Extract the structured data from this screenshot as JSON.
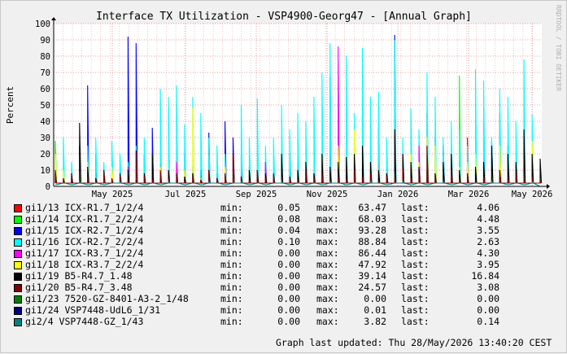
{
  "chart_data": {
    "type": "line",
    "title": "Interface TX Utilization - VSP4900-Georg47 - [Annual Graph]",
    "ylabel": "Percent",
    "xlabel": "",
    "ylim": [
      0,
      100
    ],
    "yticks": [
      0,
      10,
      20,
      30,
      40,
      50,
      60,
      70,
      80,
      90,
      100
    ],
    "x_tick_labels": [
      "May 2025",
      "Jul 2025",
      "Sep 2025",
      "Nov 2025",
      "Jan 2026",
      "Mar 2026",
      "May 2026"
    ],
    "grid": true,
    "watermark": "RRDTOOL / TOBI OETIKER",
    "series": [
      {
        "name": "gi1/13 ICX-R1.7_1/2/4",
        "color": "#ff0000",
        "min": "0.05",
        "max": "63.47",
        "last": "4.06",
        "values": [
          3,
          5,
          2,
          8,
          4,
          3,
          6,
          2,
          12,
          5,
          3,
          7,
          4,
          2,
          9,
          5,
          3,
          4,
          6,
          8,
          3,
          5,
          2,
          7,
          4,
          10,
          3,
          6,
          2,
          5,
          4,
          3,
          8,
          5,
          2,
          6,
          4,
          14,
          5,
          3,
          36,
          4,
          6,
          3,
          5,
          2,
          9,
          4,
          7,
          3,
          5,
          30,
          4,
          2,
          8,
          45,
          6,
          3,
          5,
          2,
          4
        ]
      },
      {
        "name": "gi1/14 ICX-R1.7_2/2/4",
        "color": "#00ff00",
        "min": "0.08",
        "max": "68.03",
        "last": "4.48",
        "values": [
          28,
          12,
          3,
          5,
          2,
          4,
          6,
          3,
          2,
          8,
          4,
          3,
          5,
          2,
          7,
          3,
          4,
          6,
          2,
          5,
          3,
          4,
          2,
          6,
          3,
          5,
          8,
          2,
          4,
          3,
          6,
          5,
          2,
          4,
          3,
          7,
          5,
          2,
          4,
          6,
          3,
          5,
          2,
          4,
          3,
          8,
          2,
          5,
          4,
          3,
          68,
          5,
          2,
          4,
          6,
          3,
          5,
          2,
          4,
          3,
          4
        ]
      },
      {
        "name": "gi1/15 ICX-R2.7_1/2/4",
        "color": "#0000ff",
        "min": "0.04",
        "max": "93.28",
        "last": "3.55",
        "values": [
          5,
          3,
          8,
          25,
          62,
          20,
          12,
          8,
          5,
          92,
          88,
          20,
          36,
          15,
          10,
          8,
          20,
          12,
          10,
          33,
          8,
          40,
          30,
          20,
          12,
          10,
          15,
          8,
          12,
          20,
          15,
          10,
          8,
          5,
          67,
          25,
          15,
          8,
          12,
          10,
          5,
          8,
          93,
          20,
          12,
          15,
          45,
          30,
          25,
          20,
          15,
          10,
          8,
          42,
          28,
          20,
          25,
          15,
          10,
          8,
          4
        ]
      },
      {
        "name": "gi1/16 ICX-R2.7_2/2/4",
        "color": "#00ffff",
        "min": "0.10",
        "max": "88.84",
        "last": "2.63",
        "values": [
          10,
          30,
          15,
          20,
          25,
          30,
          15,
          28,
          20,
          15,
          25,
          30,
          20,
          60,
          55,
          62,
          38,
          55,
          45,
          30,
          25,
          20,
          18,
          50,
          30,
          54,
          25,
          30,
          50,
          35,
          45,
          40,
          55,
          70,
          88,
          60,
          80,
          45,
          85,
          55,
          58,
          30,
          90,
          30,
          48,
          35,
          70,
          55,
          30,
          40,
          35,
          25,
          72,
          65,
          30,
          60,
          55,
          40,
          78,
          44,
          3
        ]
      },
      {
        "name": "gi1/17 ICX-R3.7_1/2/4",
        "color": "#ff00ff",
        "min": "0.00",
        "max": "86.44",
        "last": "4.30",
        "values": [
          2,
          4,
          3,
          6,
          2,
          5,
          8,
          3,
          4,
          12,
          5,
          3,
          6,
          2,
          4,
          15,
          3,
          5,
          2,
          4,
          3,
          6,
          2,
          5,
          3,
          4,
          15,
          2,
          5,
          3,
          6,
          4,
          2,
          5,
          3,
          86,
          4,
          2,
          6,
          3,
          5,
          2,
          4,
          3,
          6,
          25,
          4,
          2,
          5,
          3,
          6,
          4,
          2,
          5,
          3,
          6,
          4,
          2,
          5,
          3,
          4
        ]
      },
      {
        "name": "gi1/18 ICX-R3.7_2/2/4",
        "color": "#ffff00",
        "min": "0.00",
        "max": "47.92",
        "last": "3.95",
        "values": [
          20,
          10,
          5,
          8,
          15,
          3,
          6,
          12,
          4,
          10,
          5,
          8,
          3,
          12,
          6,
          4,
          10,
          48,
          5,
          8,
          3,
          12,
          6,
          4,
          10,
          5,
          8,
          3,
          6,
          4,
          10,
          5,
          8,
          20,
          6,
          25,
          10,
          35,
          6,
          8,
          10,
          5,
          8,
          12,
          20,
          15,
          30,
          25,
          10,
          8,
          12,
          15,
          20,
          10,
          8,
          25,
          12,
          15,
          10,
          28,
          4
        ]
      },
      {
        "name": "gi1/19 B5-R4.7_1.48",
        "color": "#000000",
        "min": "0.00",
        "max": "39.14",
        "last": "16.84",
        "values": [
          8,
          3,
          5,
          39,
          12,
          5,
          8,
          3,
          6,
          10,
          4,
          8,
          20,
          5,
          10,
          3,
          6,
          8,
          4,
          10,
          5,
          8,
          20,
          6,
          10,
          5,
          8,
          3,
          20,
          6,
          10,
          15,
          8,
          20,
          12,
          15,
          18,
          20,
          25,
          15,
          10,
          8,
          35,
          20,
          15,
          12,
          10,
          8,
          15,
          20,
          10,
          8,
          12,
          15,
          25,
          10,
          20,
          15,
          35,
          20,
          17
        ]
      },
      {
        "name": "gi1/20 B5-R4.7_3.48",
        "color": "#800000",
        "min": "0.00",
        "max": "24.57",
        "last": "3.08",
        "values": [
          10,
          5,
          8,
          3,
          6,
          4,
          10,
          5,
          8,
          3,
          22,
          6,
          4,
          10,
          5,
          8,
          3,
          6,
          4,
          10,
          5,
          8,
          20,
          6,
          4,
          10,
          5,
          8,
          3,
          6,
          4,
          10,
          5,
          8,
          3,
          6,
          4,
          10,
          5,
          8,
          3,
          6,
          4,
          10,
          5,
          8,
          25,
          6,
          4,
          10,
          5,
          8,
          3,
          6,
          4,
          10,
          5,
          8,
          3,
          6,
          3
        ]
      },
      {
        "name": "gi1/23 7520-GZ-8401-A3-2_1/48",
        "color": "#008000",
        "min": "0.00",
        "max": "0.00",
        "last": "0.00",
        "values": [
          0,
          0,
          0,
          0,
          0,
          0,
          0,
          0,
          0,
          0,
          0,
          0,
          0,
          0,
          0,
          0,
          0,
          0,
          0,
          0,
          0,
          0,
          0,
          0,
          0,
          0,
          0,
          0,
          0,
          0,
          0,
          0,
          0,
          0,
          0,
          0,
          0,
          0,
          0,
          0,
          0,
          0,
          0,
          0,
          0,
          0,
          0,
          0,
          0,
          0,
          0,
          0,
          0,
          0,
          0,
          0,
          0,
          0,
          0,
          0,
          0
        ]
      },
      {
        "name": "gi1/24 VSP7448-UdL6_1/31",
        "color": "#000080",
        "min": "0.00",
        "max": "0.01",
        "last": "0.00",
        "values": [
          0,
          0,
          0,
          0,
          0,
          0,
          0,
          0,
          0,
          0,
          0,
          0,
          0,
          0,
          0,
          0,
          0,
          0,
          0,
          0,
          0,
          0,
          0,
          0,
          0,
          0,
          0,
          0,
          0,
          0,
          0,
          0,
          0,
          0,
          0,
          0,
          0,
          0,
          0,
          0,
          0,
          0,
          0,
          0,
          0,
          0,
          0,
          0,
          0,
          0,
          0,
          0,
          0,
          0,
          0,
          0,
          0,
          0,
          0,
          0,
          0
        ]
      },
      {
        "name": "gi2/4 VSP7448-GZ_1/43",
        "color": "#008080",
        "min": "0.00",
        "max": "3.82",
        "last": "0.14",
        "values": [
          1,
          2,
          1,
          3,
          1,
          2,
          1,
          2,
          3,
          1,
          2,
          1,
          2,
          1,
          3,
          2,
          1,
          2,
          1,
          3,
          2,
          1,
          2,
          3,
          1,
          2,
          1,
          2,
          3,
          1,
          2,
          1,
          2,
          1,
          3,
          2,
          1,
          2,
          1,
          3,
          2,
          1,
          2,
          3,
          1,
          2,
          1,
          2,
          3,
          1,
          2,
          1,
          2,
          1,
          3,
          2,
          1,
          2,
          1,
          3,
          0
        ]
      }
    ]
  },
  "legend_labels": {
    "min": "min:",
    "max": "max:",
    "last": "last:"
  },
  "footer": {
    "updated": "Graph last updated: Thu 28/May/2026 13:40:20 CEST"
  }
}
